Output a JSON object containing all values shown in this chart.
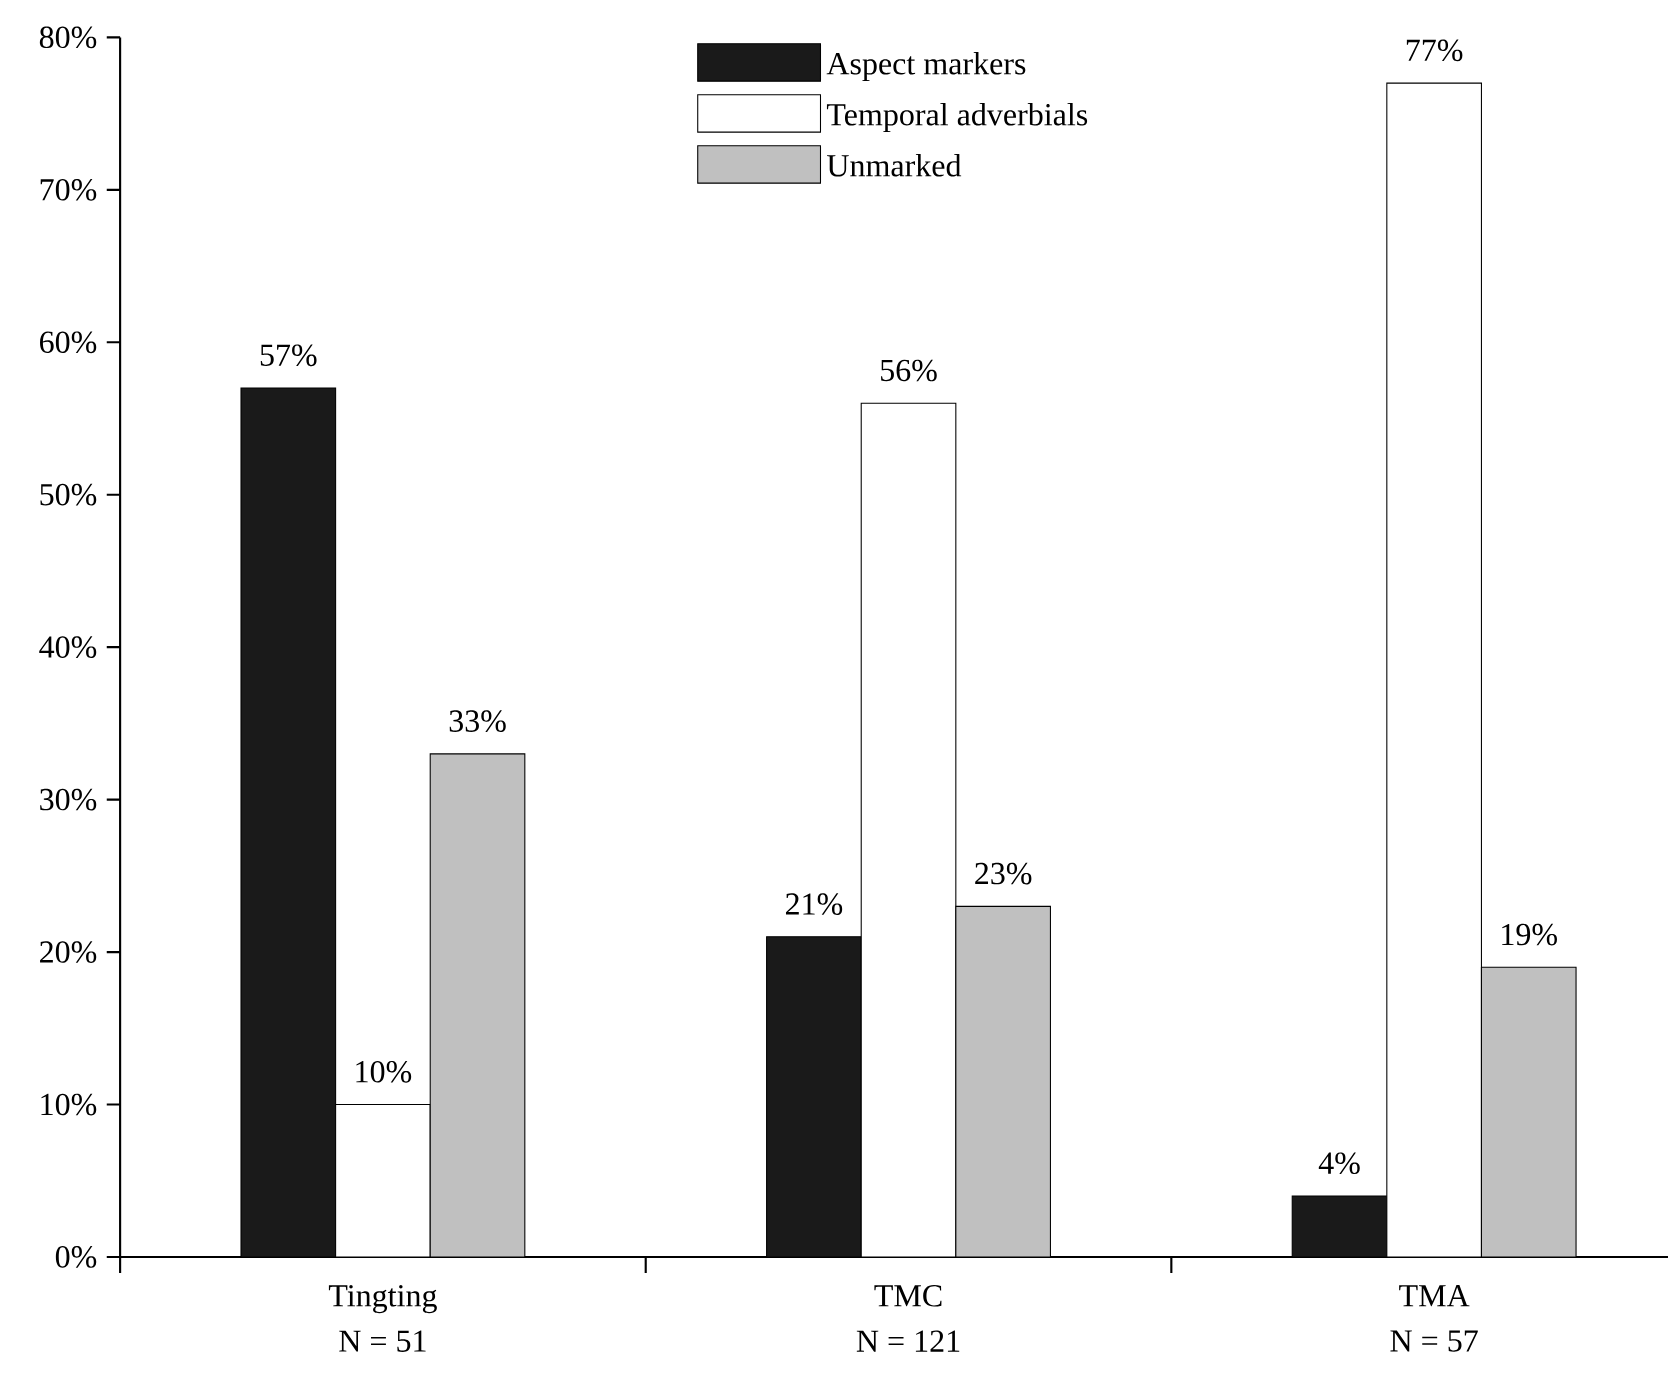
{
  "chart_data": {
    "type": "bar",
    "categories": [
      "Tingting",
      "TMC",
      "TMA"
    ],
    "annotations": [
      "N = 51",
      "N = 121",
      "N = 57"
    ],
    "series": [
      {
        "name": "Aspect markers",
        "color": "#1a1a1a",
        "values": [
          57,
          21,
          4
        ],
        "value_labels": [
          "57%",
          "21%",
          "4%"
        ]
      },
      {
        "name": "Temporal adverbials",
        "color": "#ffffff",
        "values": [
          10,
          56,
          77
        ],
        "value_labels": [
          "10%",
          "56%",
          "77%"
        ]
      },
      {
        "name": "Unmarked",
        "color": "#c0c0c0",
        "values": [
          33,
          23,
          19
        ],
        "value_labels": [
          "33%",
          "23%",
          "19%"
        ]
      }
    ],
    "ylim": [
      0,
      80
    ],
    "yticks": [
      {
        "value": 0,
        "label": "0%"
      },
      {
        "value": 10,
        "label": "10%"
      },
      {
        "value": 20,
        "label": "20%"
      },
      {
        "value": 30,
        "label": "30%"
      },
      {
        "value": 40,
        "label": "40%"
      },
      {
        "value": 50,
        "label": "50%"
      },
      {
        "value": 60,
        "label": "60%"
      },
      {
        "value": 70,
        "label": "70%"
      },
      {
        "value": 80,
        "label": "80%"
      }
    ],
    "legend": "top",
    "grid": false
  }
}
